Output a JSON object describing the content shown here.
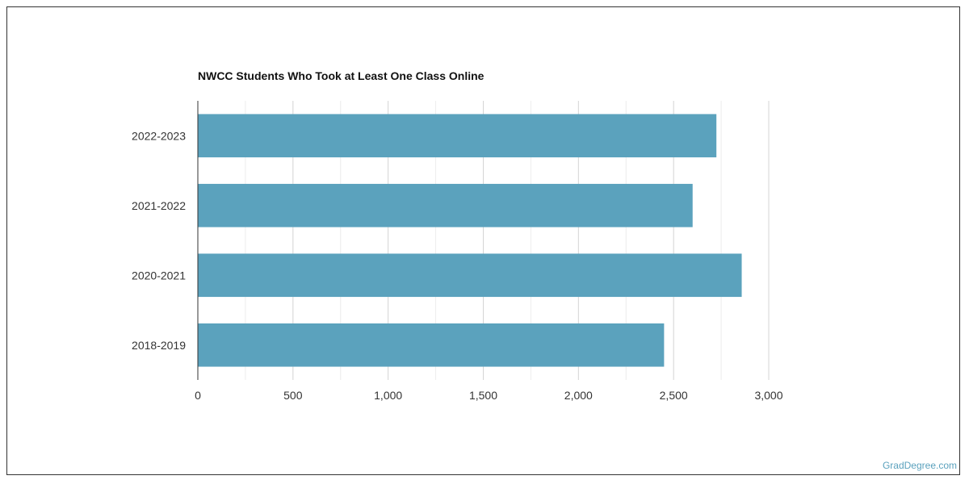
{
  "chart_data": {
    "type": "bar",
    "orientation": "horizontal",
    "title": "NWCC Students Who Took at Least One Class Online",
    "categories": [
      "2022-2023",
      "2021-2022",
      "2020-2021",
      "2018-2019"
    ],
    "values": [
      2725,
      2600,
      2858,
      2450
    ],
    "xlabel": "",
    "ylabel": "",
    "xlim": [
      0,
      3000
    ],
    "xticks": [
      0,
      500,
      1000,
      1500,
      2000,
      2500,
      3000
    ],
    "xtick_labels": [
      "0",
      "500",
      "1,000",
      "1,500",
      "2,000",
      "2,500",
      "3,000"
    ],
    "grid": true,
    "bar_color": "#5ba2bd"
  },
  "watermark": "GradDegree.com"
}
